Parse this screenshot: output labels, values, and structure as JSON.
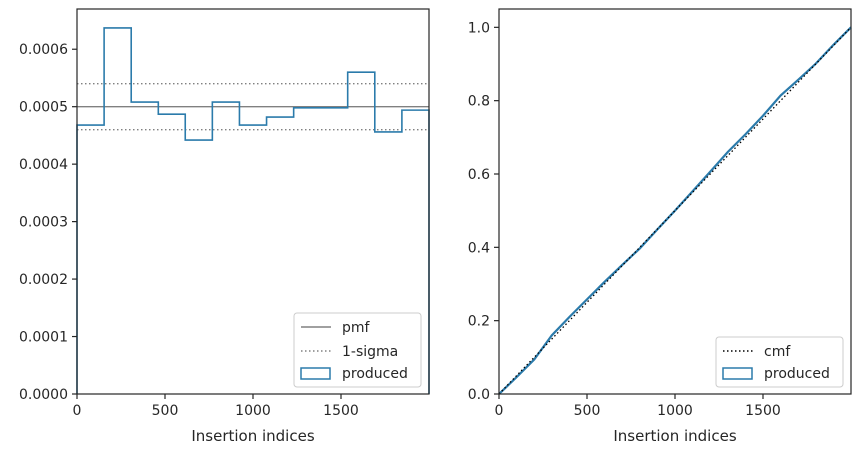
{
  "colors": {
    "pmf": "#808080",
    "sigma": "#808080",
    "produced": "#2b7bab",
    "cmf": "#000000",
    "axes": "#262626"
  },
  "chart_data": [
    {
      "type": "step",
      "title": "",
      "xlabel": "Insertion indices",
      "ylabel": "",
      "xlim": [
        0,
        2000
      ],
      "ylim": [
        0,
        0.00067
      ],
      "xticks": [
        0,
        500,
        1000,
        1500
      ],
      "yticks": [
        0,
        0.0001,
        0.0002,
        0.0003,
        0.0004,
        0.0005,
        0.0006
      ],
      "ytick_labels": [
        "0.0000",
        "0.0001",
        "0.0002",
        "0.0003",
        "0.0004",
        "0.0005",
        "0.0006"
      ],
      "pmf": 0.0005,
      "sigma_band": [
        0.00046,
        0.00054
      ],
      "bin_edges": [
        0,
        154,
        308,
        462,
        615,
        769,
        923,
        1077,
        1231,
        1385,
        1538,
        1692,
        1846,
        2000
      ],
      "produced": [
        0.000468,
        0.000637,
        0.000508,
        0.000487,
        0.000442,
        0.000508,
        0.000468,
        0.000482,
        0.000498,
        0.000498,
        0.00056,
        0.000456,
        0.000494
      ],
      "legend": {
        "position": "lower-right",
        "entries": [
          "pmf",
          "1-sigma",
          "produced"
        ]
      }
    },
    {
      "type": "line",
      "title": "",
      "xlabel": "Insertion indices",
      "ylabel": "",
      "xlim": [
        0,
        2000
      ],
      "ylim": [
        0,
        1.05
      ],
      "xticks": [
        0,
        500,
        1000,
        1500
      ],
      "yticks": [
        0,
        0.2,
        0.4,
        0.6,
        0.8,
        1.0
      ],
      "ytick_labels": [
        "0.0",
        "0.2",
        "0.4",
        "0.6",
        "0.8",
        "1.0"
      ],
      "cmf": {
        "x": [
          0,
          2000
        ],
        "y": [
          0,
          1.0
        ]
      },
      "produced": {
        "x": [
          0,
          100,
          200,
          300,
          400,
          500,
          600,
          700,
          800,
          900,
          1000,
          1100,
          1200,
          1300,
          1400,
          1500,
          1600,
          1700,
          1800,
          1900,
          2000
        ],
        "y": [
          0,
          0.046,
          0.094,
          0.16,
          0.21,
          0.258,
          0.306,
          0.352,
          0.397,
          0.449,
          0.5,
          0.553,
          0.606,
          0.66,
          0.708,
          0.759,
          0.814,
          0.857,
          0.901,
          0.952,
          1.0
        ]
      },
      "legend": {
        "position": "lower-right",
        "entries": [
          "cmf",
          "produced"
        ]
      }
    }
  ]
}
